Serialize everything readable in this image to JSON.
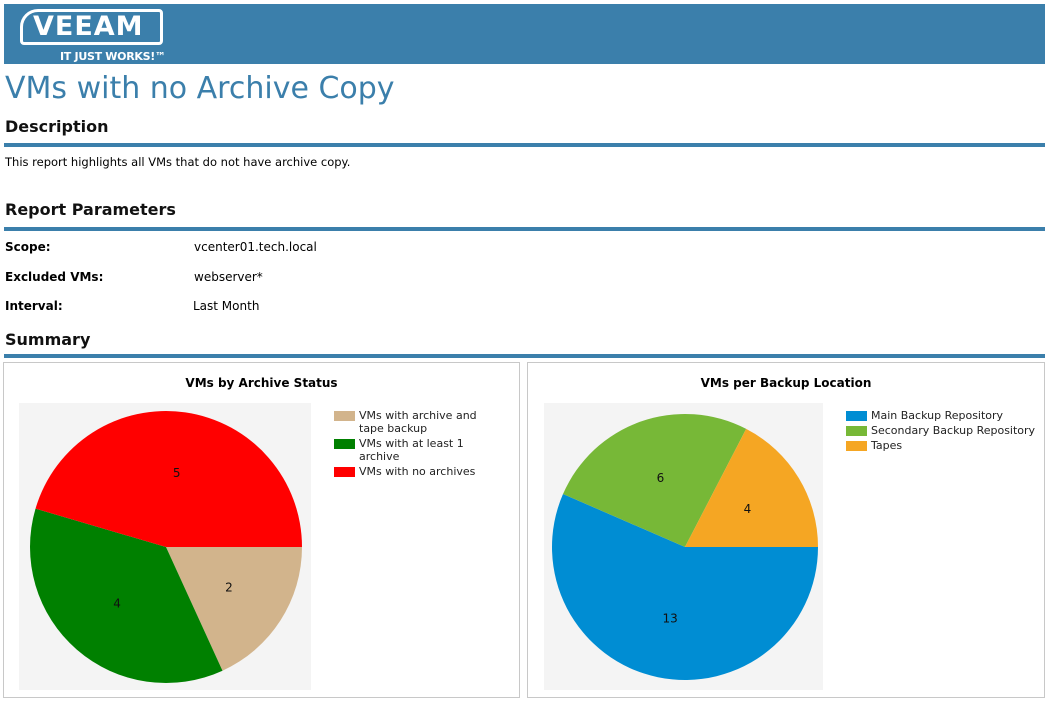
{
  "brand": {
    "logo_text": "VEEAM",
    "tagline": "IT JUST WORKS!™"
  },
  "page": {
    "title": "VMs with no Archive Copy"
  },
  "description": {
    "heading": "Description",
    "text": "This report highlights all VMs that do not have archive copy."
  },
  "parameters": {
    "heading": "Report Parameters",
    "items": [
      {
        "label": "Scope:",
        "value": "vcenter01.tech.local"
      },
      {
        "label": "Excluded VMs:",
        "value": "webserver*"
      },
      {
        "label": "Interval:",
        "value": "Last Month"
      }
    ]
  },
  "summary": {
    "heading": "Summary"
  },
  "colors": {
    "accent": "#3b7fab",
    "archive_and_tape": "#d2b48c",
    "at_least_one": "#008000",
    "no_archives": "#ff0000",
    "main_repo": "#008dd3",
    "secondary_repo": "#77b837",
    "tapes": "#f5a623"
  },
  "chart_data": [
    {
      "type": "pie",
      "title": "VMs by Archive Status",
      "categories": [
        "VMs with archive and tape backup",
        "VMs with at least 1 archive",
        "VMs with no archives"
      ],
      "values": [
        2,
        4,
        5
      ],
      "colors": [
        "#d2b48c",
        "#008000",
        "#ff0000"
      ],
      "legend_position": "right"
    },
    {
      "type": "pie",
      "title": "VMs per Backup Location",
      "categories": [
        "Main Backup Repository",
        "Secondary Backup Repository",
        "Tapes"
      ],
      "values": [
        13,
        6,
        4
      ],
      "colors": [
        "#008dd3",
        "#77b837",
        "#f5a623"
      ],
      "legend_position": "right"
    }
  ]
}
